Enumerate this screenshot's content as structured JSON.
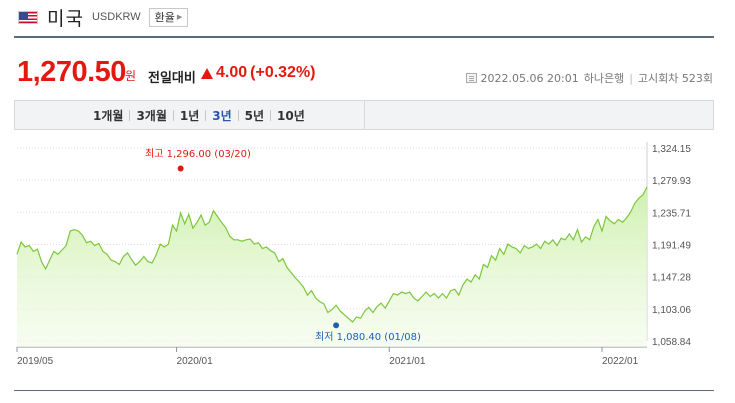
{
  "header": {
    "country": "미국",
    "code": "USDKRW",
    "exchange_button": "환율",
    "flag_icon": "us-flag-icon"
  },
  "quote": {
    "price": "1,270.50",
    "unit": "원",
    "compare_label": "전일대비",
    "change": "4.00",
    "change_pct": "(+0.32%)",
    "direction": "up"
  },
  "meta": {
    "datetime": "2022.05.06 20:01",
    "bank": "하나은행",
    "notice": "고시회차 523회"
  },
  "tabs": [
    "1개월",
    "3개월",
    "1년",
    "3년",
    "5년",
    "10년"
  ],
  "active_tab": "3년",
  "colors": {
    "up": "#e5180f",
    "down": "#1a5fb4",
    "line": "#7cc63b",
    "fill": "#dcf5c2",
    "active_tab": "#2a55b2"
  },
  "chart_data": {
    "type": "area",
    "x_ticks": [
      "2019/05",
      "2020/01",
      "2021/01",
      "2022/01"
    ],
    "y_ticks": [
      "1,324.15",
      "1,279.93",
      "1,235.71",
      "1,191.49",
      "1,147.28",
      "1,103.06",
      "1,058.84"
    ],
    "ylim": [
      1058.84,
      1324.15
    ],
    "grid": "horizontal dotted",
    "high_label": "최고 1,296.00 (03/20)",
    "low_label": "최저 1,080.40 (01/08)",
    "high": {
      "value": 1296.0
    },
    "low": {
      "value": 1080.4
    },
    "series": [
      {
        "values": [
          1178,
          1195,
          1188,
          1190,
          1182,
          1185,
          1168,
          1158,
          1170,
          1182,
          1178,
          1184,
          1190,
          1210,
          1212,
          1210,
          1204,
          1194,
          1196,
          1190,
          1193,
          1182,
          1178,
          1170,
          1168,
          1164,
          1175,
          1180,
          1171,
          1163,
          1168,
          1175,
          1168,
          1166,
          1177,
          1192,
          1188,
          1192,
          1218,
          1210,
          1235,
          1220,
          1233,
          1214,
          1222,
          1232,
          1218,
          1222,
          1238,
          1230,
          1222,
          1215,
          1203,
          1198,
          1198,
          1196,
          1198,
          1199,
          1192,
          1194,
          1186,
          1188,
          1183,
          1180,
          1168,
          1172,
          1160,
          1153,
          1146,
          1140,
          1133,
          1122,
          1128,
          1118,
          1113,
          1110,
          1098,
          1102,
          1108,
          1100,
          1095,
          1090,
          1085,
          1092,
          1090,
          1100,
          1105,
          1098,
          1106,
          1111,
          1104,
          1114,
          1124,
          1122,
          1126,
          1124,
          1126,
          1118,
          1114,
          1120,
          1126,
          1120,
          1124,
          1118,
          1124,
          1118,
          1128,
          1130,
          1122,
          1136,
          1144,
          1140,
          1150,
          1144,
          1164,
          1160,
          1176,
          1170,
          1186,
          1178,
          1192,
          1188,
          1186,
          1180,
          1190,
          1186,
          1188,
          1192,
          1186,
          1196,
          1192,
          1198,
          1190,
          1200,
          1198,
          1206,
          1198,
          1212,
          1195,
          1202,
          1198,
          1216,
          1226,
          1210,
          1230,
          1224,
          1220,
          1226,
          1222,
          1228,
          1236,
          1248,
          1255,
          1260,
          1270.5
        ]
      }
    ]
  }
}
